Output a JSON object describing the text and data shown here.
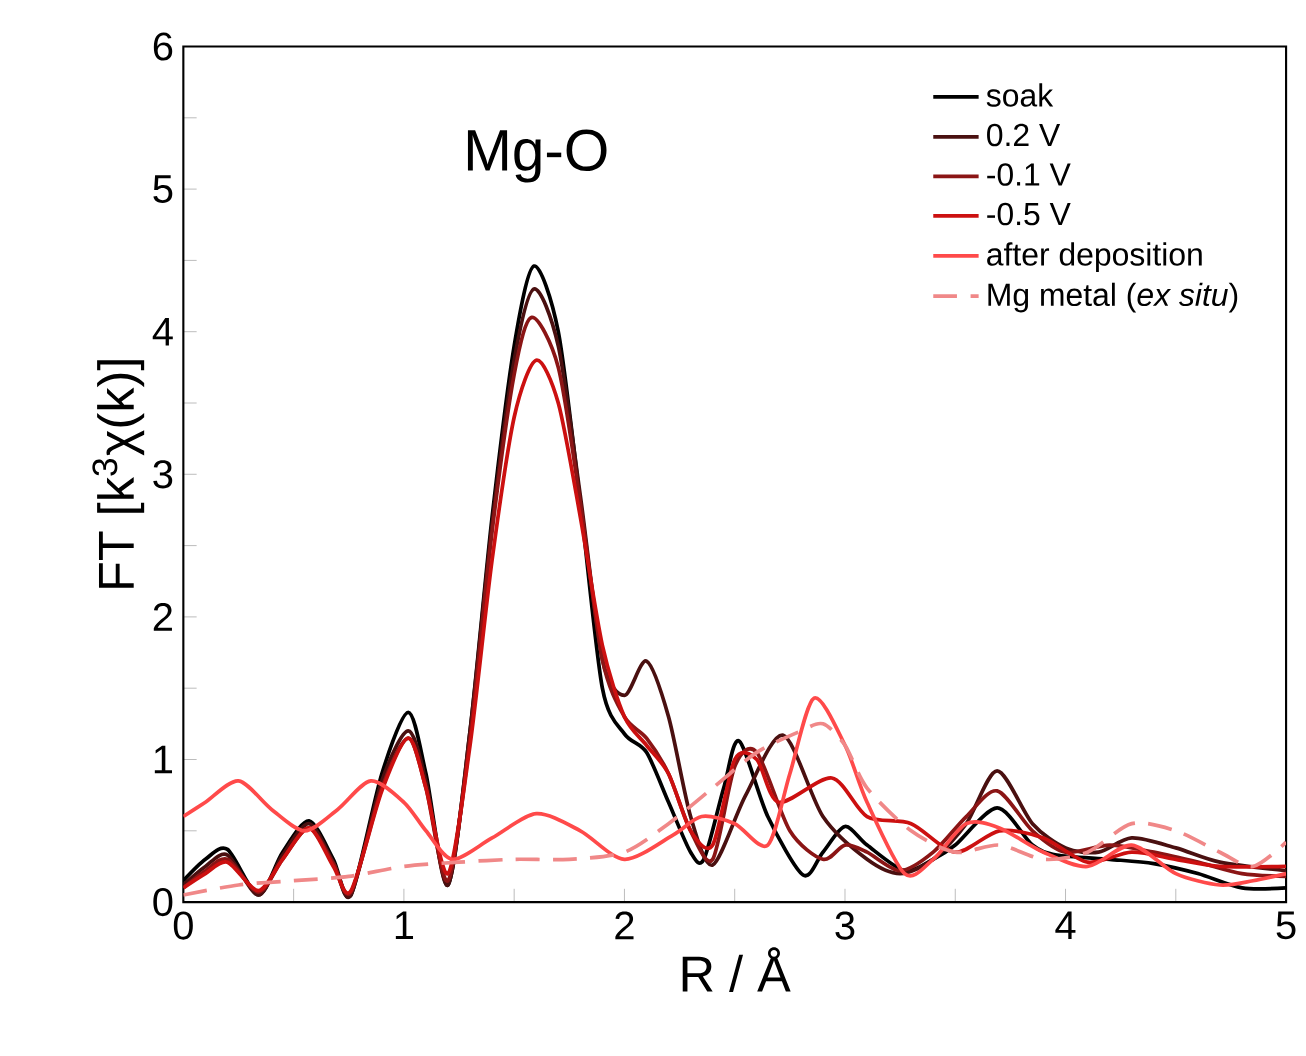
{
  "chart_data": {
    "type": "line",
    "xlabel": "R / Å",
    "ylabel": "FT [k$^{3}$χ(k)]",
    "annotations": [
      "Mg-O"
    ],
    "xlim": [
      0,
      5
    ],
    "ylim": [
      0,
      6
    ],
    "xticks": [
      0,
      {
        "value": 0.5,
        "label": null
      },
      1,
      {
        "value": 1.5,
        "label": null
      },
      2,
      {
        "value": 2.5,
        "label": null
      },
      3,
      {
        "value": 3.5,
        "label": null
      },
      4,
      {
        "value": 4.5,
        "label": null
      },
      5
    ],
    "yticks": [
      0,
      {
        "value": 0.5,
        "label": null
      },
      1,
      {
        "value": 1.5,
        "label": null
      },
      2,
      {
        "value": 2.5,
        "label": null
      },
      3,
      {
        "value": 3.5,
        "label": null
      },
      4,
      {
        "value": 4.5,
        "label": null
      },
      5,
      {
        "value": 5.5,
        "label": null
      },
      6
    ],
    "legend": "top right",
    "marker": "none",
    "grid": false,
    "series": [
      {
        "name": "soak",
        "color": "#000000",
        "line_style": "solid",
        "x": [
          0,
          0.1,
          0.2,
          0.34,
          0.45,
          0.57,
          0.68,
          0.76,
          0.9,
          1.02,
          1.1,
          1.2,
          1.3,
          1.4,
          1.5,
          1.59,
          1.7,
          1.8,
          1.9,
          2.0,
          2.1,
          2.2,
          2.3,
          2.36,
          2.45,
          2.52,
          2.65,
          2.81,
          2.9,
          3.0,
          3.1,
          3.27,
          3.4,
          3.5,
          3.69,
          3.85,
          3.96,
          4.2,
          4.4,
          4.6,
          4.8,
          5.0
        ],
        "values": [
          0.15,
          0.3,
          0.37,
          0.05,
          0.35,
          0.57,
          0.3,
          0.05,
          0.9,
          1.33,
          0.9,
          0.12,
          1.2,
          2.7,
          3.9,
          4.46,
          4.0,
          2.8,
          1.5,
          1.18,
          1.05,
          0.7,
          0.35,
          0.3,
          0.8,
          1.13,
          0.6,
          0.19,
          0.35,
          0.53,
          0.4,
          0.22,
          0.3,
          0.4,
          0.66,
          0.4,
          0.33,
          0.3,
          0.27,
          0.2,
          0.1,
          0.1
        ]
      },
      {
        "name": "0.2 V",
        "color": "#4a1010",
        "line_style": "solid",
        "x": [
          0,
          0.1,
          0.2,
          0.34,
          0.45,
          0.57,
          0.68,
          0.76,
          0.9,
          1.02,
          1.1,
          1.2,
          1.3,
          1.4,
          1.5,
          1.59,
          1.7,
          1.8,
          1.9,
          2.0,
          2.1,
          2.2,
          2.3,
          2.4,
          2.55,
          2.72,
          2.9,
          3.1,
          3.25,
          3.4,
          3.55,
          3.69,
          3.85,
          4.0,
          4.15,
          4.3,
          4.5,
          4.7,
          5.0
        ],
        "values": [
          0.12,
          0.25,
          0.33,
          0.05,
          0.33,
          0.55,
          0.28,
          0.05,
          0.85,
          1.2,
          0.85,
          0.12,
          1.2,
          2.65,
          3.8,
          4.3,
          3.9,
          2.85,
          1.7,
          1.45,
          1.69,
          1.3,
          0.6,
          0.26,
          0.75,
          1.17,
          0.6,
          0.3,
          0.2,
          0.3,
          0.55,
          0.92,
          0.55,
          0.38,
          0.35,
          0.45,
          0.38,
          0.28,
          0.22
        ]
      },
      {
        "name": "-0.1 V",
        "color": "#8b1515",
        "line_style": "solid",
        "x": [
          0,
          0.1,
          0.2,
          0.34,
          0.45,
          0.57,
          0.68,
          0.76,
          0.9,
          1.02,
          1.1,
          1.2,
          1.3,
          1.4,
          1.5,
          1.58,
          1.7,
          1.8,
          1.9,
          2.0,
          2.1,
          2.2,
          2.3,
          2.4,
          2.5,
          2.6,
          2.75,
          2.9,
          3.0,
          3.1,
          3.25,
          3.4,
          3.55,
          3.69,
          3.85,
          4.0,
          4.2,
          4.4,
          4.6,
          4.8,
          5.0
        ],
        "values": [
          0.1,
          0.22,
          0.3,
          0.07,
          0.3,
          0.52,
          0.27,
          0.07,
          0.8,
          1.15,
          0.8,
          0.15,
          1.15,
          2.6,
          3.7,
          4.1,
          3.75,
          2.8,
          1.7,
          1.3,
          1.15,
          0.9,
          0.5,
          0.3,
          0.95,
          1.05,
          0.5,
          0.3,
          0.4,
          0.35,
          0.22,
          0.35,
          0.6,
          0.78,
          0.5,
          0.35,
          0.4,
          0.35,
          0.28,
          0.2,
          0.18
        ]
      },
      {
        "name": "-0.5 V",
        "color": "#cc1010",
        "line_style": "solid",
        "x": [
          0,
          0.1,
          0.2,
          0.34,
          0.45,
          0.57,
          0.68,
          0.76,
          0.9,
          1.02,
          1.1,
          1.2,
          1.3,
          1.4,
          1.5,
          1.6,
          1.7,
          1.8,
          1.9,
          2.0,
          2.1,
          2.2,
          2.3,
          2.4,
          2.5,
          2.6,
          2.7,
          2.94,
          3.1,
          3.3,
          3.5,
          3.7,
          3.9,
          4.1,
          4.3,
          4.5,
          4.7,
          5.0
        ],
        "values": [
          0.1,
          0.2,
          0.28,
          0.08,
          0.3,
          0.52,
          0.25,
          0.08,
          0.78,
          1.15,
          0.8,
          0.2,
          1.1,
          2.4,
          3.4,
          3.8,
          3.5,
          2.7,
          1.8,
          1.3,
          1.1,
          0.9,
          0.5,
          0.4,
          1.0,
          1.0,
          0.7,
          0.87,
          0.6,
          0.55,
          0.35,
          0.5,
          0.45,
          0.28,
          0.35,
          0.3,
          0.25,
          0.25
        ]
      },
      {
        "name": "after deposition",
        "color": "#ff4a4a",
        "line_style": "solid",
        "x": [
          0,
          0.1,
          0.25,
          0.4,
          0.55,
          0.7,
          0.85,
          1.0,
          1.1,
          1.22,
          1.4,
          1.6,
          1.8,
          2.0,
          2.22,
          2.35,
          2.5,
          2.65,
          2.75,
          2.86,
          3.0,
          3.1,
          3.27,
          3.4,
          3.55,
          3.7,
          3.9,
          4.1,
          4.3,
          4.5,
          4.7,
          4.85,
          5.0
        ],
        "values": [
          0.6,
          0.7,
          0.85,
          0.65,
          0.5,
          0.65,
          0.85,
          0.7,
          0.5,
          0.3,
          0.45,
          0.62,
          0.5,
          0.3,
          0.47,
          0.6,
          0.55,
          0.4,
          0.9,
          1.43,
          1.1,
          0.7,
          0.2,
          0.3,
          0.55,
          0.52,
          0.35,
          0.25,
          0.4,
          0.2,
          0.12,
          0.15,
          0.2
        ]
      },
      {
        "name": "Mg metal (*ex situ*)",
        "color": "#f08888",
        "line_style": "dashed",
        "x": [
          0,
          0.25,
          0.5,
          0.75,
          1.0,
          1.25,
          1.5,
          1.75,
          2.0,
          2.2,
          2.4,
          2.6,
          2.8,
          2.9,
          3.0,
          3.1,
          3.3,
          3.5,
          3.7,
          3.9,
          4.1,
          4.3,
          4.5,
          4.7,
          4.85,
          5.0
        ],
        "values": [
          0.05,
          0.12,
          0.15,
          0.18,
          0.25,
          0.28,
          0.3,
          0.3,
          0.35,
          0.55,
          0.8,
          1.05,
          1.2,
          1.25,
          1.1,
          0.8,
          0.5,
          0.35,
          0.4,
          0.3,
          0.35,
          0.55,
          0.5,
          0.35,
          0.25,
          0.42
        ]
      }
    ]
  }
}
